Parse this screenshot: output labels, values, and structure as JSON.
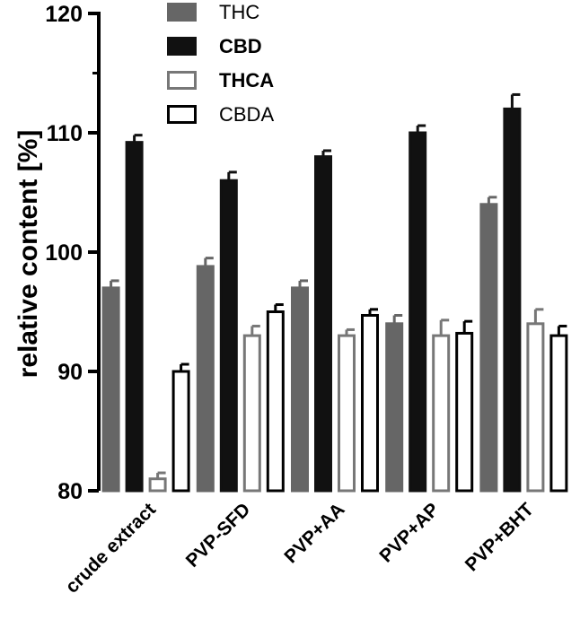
{
  "chart_data": {
    "type": "bar",
    "title": "",
    "xlabel": "",
    "ylabel": "relative content [%]",
    "ylim": [
      80,
      120
    ],
    "yticks": [
      80,
      90,
      100,
      110,
      120
    ],
    "grid": false,
    "legend_position": "top-inside",
    "categories": [
      "crude extract",
      "PVP-SFD",
      "PVP+AA",
      "PVP+AP",
      "PVP+BHT"
    ],
    "series": [
      {
        "name": "THC",
        "fill": "#666666",
        "stroke": "#666666",
        "bold": false,
        "values": [
          97.0,
          98.8,
          97.0,
          94.0,
          104.0
        ],
        "errors": [
          0.6,
          0.7,
          0.6,
          0.7,
          0.6
        ]
      },
      {
        "name": "CBD",
        "fill": "#111111",
        "stroke": "#111111",
        "bold": true,
        "values": [
          109.2,
          106.0,
          108.0,
          110.0,
          112.0
        ],
        "errors": [
          0.6,
          0.7,
          0.5,
          0.6,
          1.2
        ]
      },
      {
        "name": "THCA",
        "fill": "#ffffff",
        "stroke": "#777777",
        "bold": true,
        "values": [
          81.0,
          93.0,
          93.0,
          93.0,
          94.0
        ],
        "errors": [
          0.5,
          0.8,
          0.5,
          1.3,
          1.2
        ]
      },
      {
        "name": "CBDA",
        "fill": "#ffffff",
        "stroke": "#000000",
        "bold": false,
        "values": [
          90.0,
          95.0,
          94.7,
          93.2,
          93.0
        ],
        "errors": [
          0.6,
          0.6,
          0.5,
          1.0,
          0.8
        ]
      }
    ]
  }
}
